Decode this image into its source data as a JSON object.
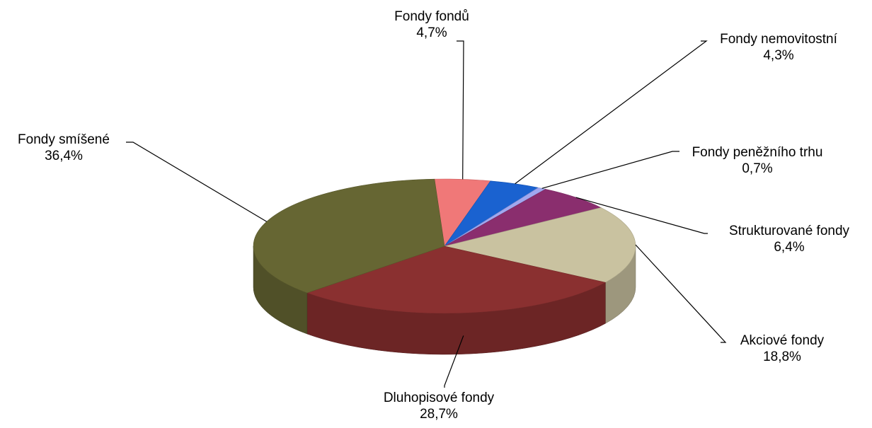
{
  "chart_data": {
    "type": "pie",
    "style": "3d",
    "slices": [
      {
        "label": "Fondy fondů",
        "value": 4.7,
        "value_text": "4,7%",
        "color": "#f07878"
      },
      {
        "label": "Fondy nemovitostní",
        "value": 4.3,
        "value_text": "4,3%",
        "color": "#1a62d0"
      },
      {
        "label": "Fondy peněžního trhu",
        "value": 0.7,
        "value_text": "0,7%",
        "color": "#a0a8f0"
      },
      {
        "label": "Strukturované fondy",
        "value": 6.4,
        "value_text": "6,4%",
        "color": "#8a2e6e"
      },
      {
        "label": "Akciové fondy",
        "value": 18.8,
        "value_text": "18,8%",
        "color": "#c9c2a0"
      },
      {
        "label": "Dluhopisové fondy",
        "value": 28.7,
        "value_text": "28,7%",
        "color": "#8a3030"
      },
      {
        "label": "Fondy smíšené",
        "value": 36.4,
        "value_text": "36,4%",
        "color": "#666633"
      }
    ]
  }
}
